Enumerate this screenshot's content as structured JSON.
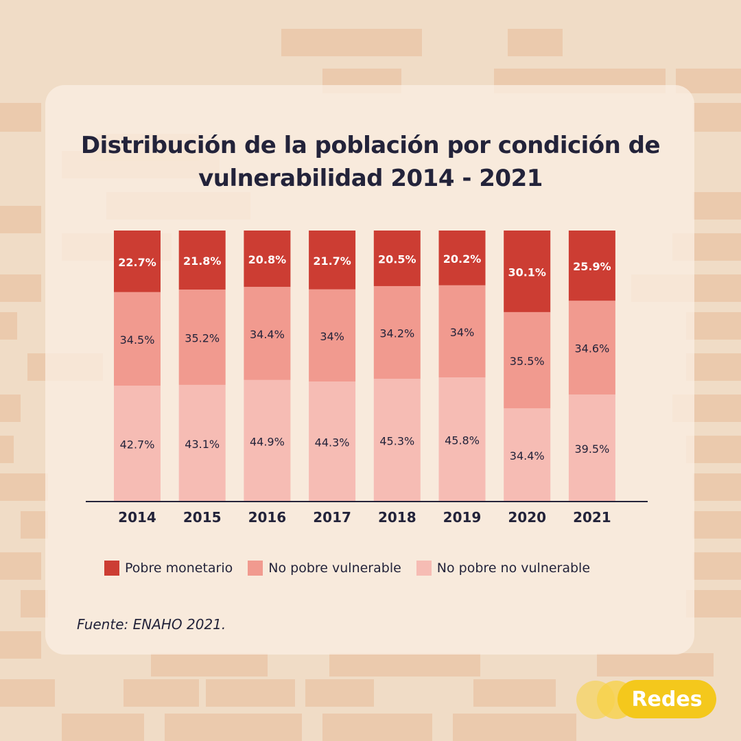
{
  "title": "Distribución de la población por condición de vulnerabilidad 2014 - 2021",
  "source": "Fuente: ENAHO 2021.",
  "logo_text": "Redes",
  "colors": {
    "pobre_monetario": "#cc3d33",
    "no_pobre_vulnerable": "#f19a8f",
    "no_pobre_no_vulnerable": "#f6bcb4",
    "text_dark": "#23233a",
    "text_light": "#ffffff"
  },
  "chart_data": {
    "type": "bar",
    "stacked": true,
    "categories": [
      "2014",
      "2015",
      "2016",
      "2017",
      "2018",
      "2019",
      "2020",
      "2021"
    ],
    "series": [
      {
        "name": "No pobre no vulnerable",
        "values": [
          42.7,
          43.1,
          44.9,
          44.3,
          45.3,
          45.8,
          34.4,
          39.5
        ],
        "labels": [
          "42.7%",
          "43.1%",
          "44.9%",
          "44.3%",
          "45.3%",
          "45.8%",
          "34.4%",
          "39.5%"
        ]
      },
      {
        "name": "No pobre vulnerable",
        "values": [
          34.5,
          35.2,
          34.4,
          34,
          34.2,
          34,
          35.5,
          34.6
        ],
        "labels": [
          "34.5%",
          "35.2%",
          "34.4%",
          "34%",
          "34.2%",
          "34%",
          "35.5%",
          "34.6%"
        ]
      },
      {
        "name": "Pobre monetario",
        "values": [
          22.7,
          21.8,
          20.8,
          21.7,
          20.5,
          20.2,
          30.1,
          25.9
        ],
        "labels": [
          "22.7%",
          "21.8%",
          "20.8%",
          "21.7%",
          "20.5%",
          "20.2%",
          "30.1%",
          "25.9%"
        ]
      }
    ],
    "ylim": [
      0,
      100
    ],
    "grid": false,
    "legend_position": "bottom"
  }
}
